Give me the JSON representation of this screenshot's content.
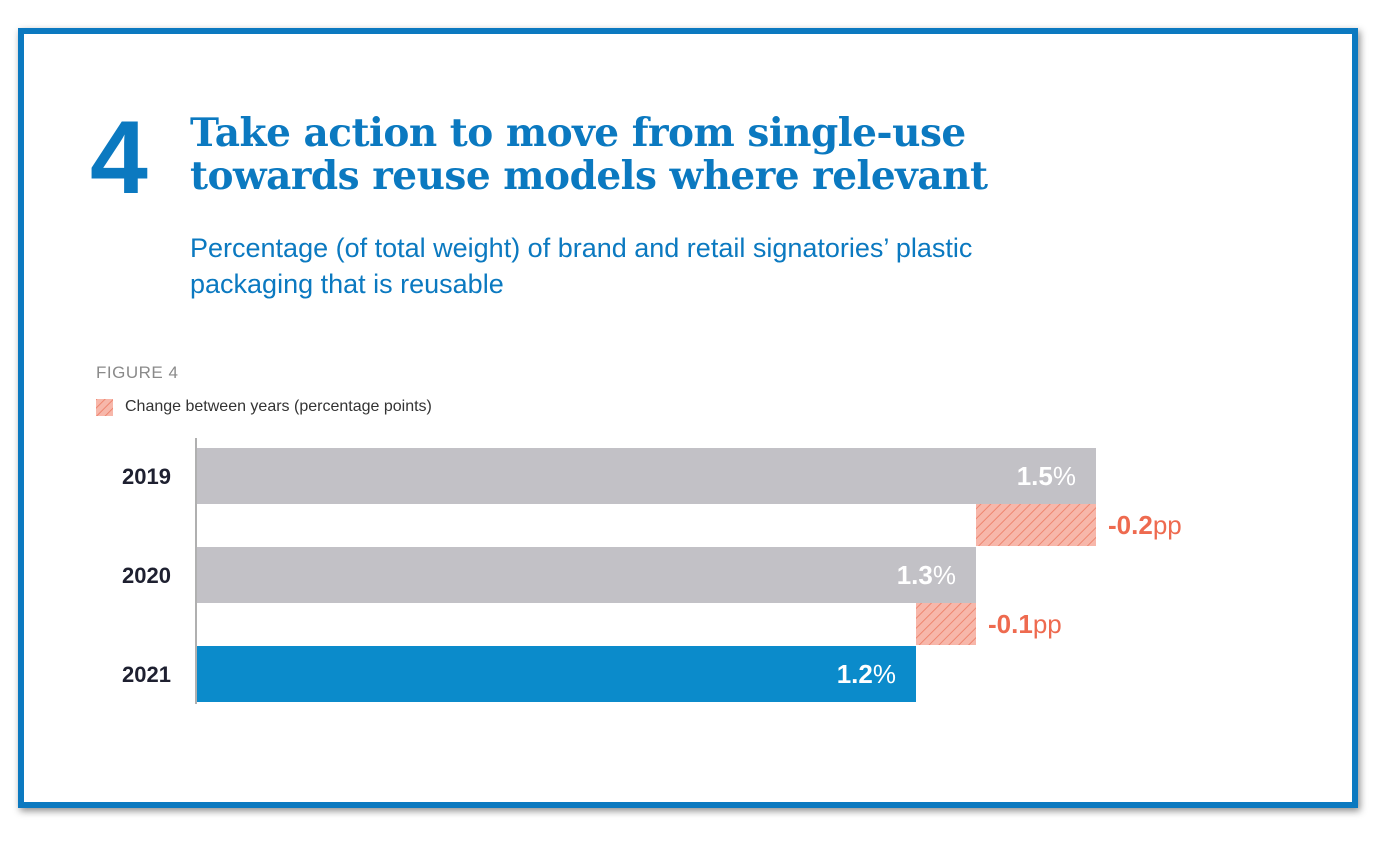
{
  "section": {
    "number": "4",
    "title_lines": [
      "Take action to move from single-use",
      "towards reuse models where relevant"
    ],
    "subtitle_lines": [
      "Percentage (of total weight) of brand and retail signatories’ plastic",
      "packaging that is reusable"
    ]
  },
  "figure": {
    "label": "FIGURE 4",
    "legend_label": "Change between years (percentage points)"
  },
  "colors": {
    "frame": "#0b79c0",
    "title": "#0b79c0",
    "bar_grey": "#c2c1c6",
    "bar_highlight": "#0b8bcb",
    "change": "#f3a08f",
    "change_text": "#ee6a4f",
    "year_text": "#1e2030"
  },
  "chart_data": {
    "type": "bar",
    "orientation": "horizontal",
    "unit": "%",
    "categories": [
      "2019",
      "2020",
      "2021"
    ],
    "values": [
      1.5,
      1.3,
      1.2
    ],
    "value_labels": [
      "1.5",
      "1.3",
      "1.2"
    ],
    "changes": [
      {
        "from": "2019",
        "to": "2020",
        "value": -0.2,
        "label": "-0.2",
        "unit": "pp"
      },
      {
        "from": "2020",
        "to": "2021",
        "value": -0.1,
        "label": "-0.1",
        "unit": "pp"
      }
    ],
    "xlim": [
      0,
      1.5
    ],
    "grid": false,
    "legend_position": "top-left"
  }
}
